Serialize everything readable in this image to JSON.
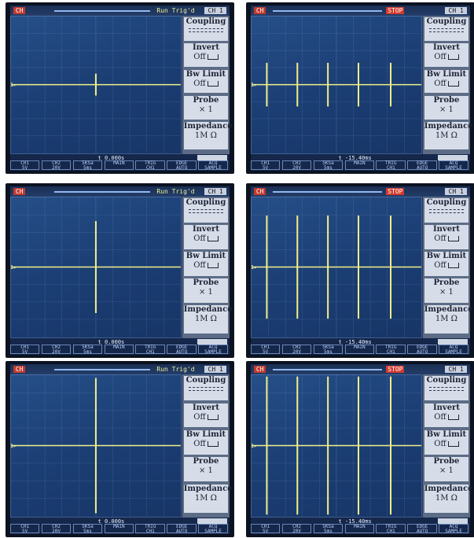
{
  "panels": [
    {
      "status": "Run Trig'd",
      "state": "run",
      "channel_badge": "CH",
      "ch_tab": "CH 1",
      "time": "t 0.000s",
      "spikes": [
        0.5
      ],
      "spike_height": 0.08,
      "menu": {
        "coupling": "Coupling",
        "invert": "Invert",
        "invert_val": "Off",
        "bw": "Bw Limit",
        "bw_val": "Off",
        "probe": "Probe",
        "probe_val": "× 1",
        "impedance": "Impedance",
        "imp_val": "1M Ω"
      },
      "bottom": [
        [
          "CH1",
          "5V"
        ],
        [
          "CH2",
          "20V"
        ],
        [
          "5KSa",
          "5ms"
        ],
        [
          "MAIN",
          ""
        ],
        [
          "TRIG",
          "CH1"
        ],
        [
          "EDGE",
          "AUTO"
        ],
        [
          "ACQ",
          "SAMPLE"
        ]
      ]
    },
    {
      "status": "STOP",
      "state": "stop",
      "channel_badge": "CH",
      "ch_tab": "CH 1",
      "time": "t -15.40ms",
      "spikes": [
        0.09,
        0.27,
        0.45,
        0.63,
        0.82
      ],
      "spike_height": 0.16,
      "menu": {
        "coupling": "Coupling",
        "invert": "Invert",
        "invert_val": "Off",
        "bw": "Bw Limit",
        "bw_val": "Off",
        "probe": "Probe",
        "probe_val": "× 1",
        "impedance": "Impedance",
        "imp_val": "1M Ω"
      },
      "bottom": [
        [
          "CH1",
          "5V"
        ],
        [
          "CH2",
          "20V"
        ],
        [
          "5KSa",
          "5ms"
        ],
        [
          "MAIN",
          ""
        ],
        [
          "TRIG",
          "CH1"
        ],
        [
          "EDGE",
          "AUTO"
        ],
        [
          "ACQ",
          "SAMPLE"
        ]
      ]
    },
    {
      "status": "Run Trig'd",
      "state": "run",
      "channel_badge": "CH",
      "ch_tab": "CH 1",
      "time": "t 0.000s",
      "spikes": [
        0.5
      ],
      "spike_height": 0.33,
      "menu": {
        "coupling": "Coupling",
        "invert": "Invert",
        "invert_val": "Off",
        "bw": "Bw Limit",
        "bw_val": "Off",
        "probe": "Probe",
        "probe_val": "× 1",
        "impedance": "Impedance",
        "imp_val": "1M Ω"
      },
      "bottom": [
        [
          "CH1",
          "5V"
        ],
        [
          "CH2",
          "20V"
        ],
        [
          "5KSa",
          "5ms"
        ],
        [
          "MAIN",
          ""
        ],
        [
          "TRIG",
          "CH1"
        ],
        [
          "EDGE",
          "AUTO"
        ],
        [
          "ACQ",
          "SAMPLE"
        ]
      ]
    },
    {
      "status": "STOP",
      "state": "stop",
      "channel_badge": "CH",
      "ch_tab": "CH 1",
      "time": "t -15.40ms",
      "spikes": [
        0.09,
        0.27,
        0.45,
        0.63,
        0.82
      ],
      "spike_height": 0.37,
      "menu": {
        "coupling": "Coupling",
        "invert": "Invert",
        "invert_val": "Off",
        "bw": "Bw Limit",
        "bw_val": "Off",
        "probe": "Probe",
        "probe_val": "× 1",
        "impedance": "Impedance",
        "imp_val": "1M Ω"
      },
      "bottom": [
        [
          "CH1",
          "5V"
        ],
        [
          "CH2",
          "20V"
        ],
        [
          "5KSa",
          "5ms"
        ],
        [
          "MAIN",
          ""
        ],
        [
          "TRIG",
          "CH1"
        ],
        [
          "EDGE",
          "AUTO"
        ],
        [
          "ACQ",
          "SAMPLE"
        ]
      ]
    },
    {
      "status": "Run Trig'd",
      "state": "run",
      "channel_badge": "CH",
      "ch_tab": "CH 1",
      "time": "t 0.000s",
      "spikes": [
        0.5
      ],
      "spike_height": 0.48,
      "menu": {
        "coupling": "Coupling",
        "invert": "Invert",
        "invert_val": "Off",
        "bw": "Bw Limit",
        "bw_val": "Off",
        "probe": "Probe",
        "probe_val": "× 1",
        "impedance": "Impedance",
        "imp_val": "1M Ω"
      },
      "bottom": [
        [
          "CH1",
          "5V"
        ],
        [
          "CH2",
          "20V"
        ],
        [
          "5KSa",
          "5ms"
        ],
        [
          "MAIN",
          ""
        ],
        [
          "TRIG",
          "CH1"
        ],
        [
          "EDGE",
          "AUTO"
        ],
        [
          "ACQ",
          "SAMPLE"
        ]
      ]
    },
    {
      "status": "STOP",
      "state": "stop",
      "channel_badge": "CH",
      "ch_tab": "CH 1",
      "time": "t -15.40ms",
      "spikes": [
        0.09,
        0.27,
        0.45,
        0.63,
        0.82
      ],
      "spike_height": 0.49,
      "menu": {
        "coupling": "Coupling",
        "invert": "Invert",
        "invert_val": "Off",
        "bw": "Bw Limit",
        "bw_val": "Off",
        "probe": "Probe",
        "probe_val": "× 1",
        "impedance": "Impedance",
        "imp_val": "1M Ω"
      },
      "bottom": [
        [
          "CH1",
          "5V"
        ],
        [
          "CH2",
          "20V"
        ],
        [
          "5KSa",
          "5ms"
        ],
        [
          "MAIN",
          ""
        ],
        [
          "TRIG",
          "CH1"
        ],
        [
          "EDGE",
          "AUTO"
        ],
        [
          "ACQ",
          "SAMPLE"
        ]
      ]
    }
  ],
  "colors": {
    "trace": "#f3f08a",
    "grid": "#bcd3ff",
    "screen": "#1f467f"
  }
}
